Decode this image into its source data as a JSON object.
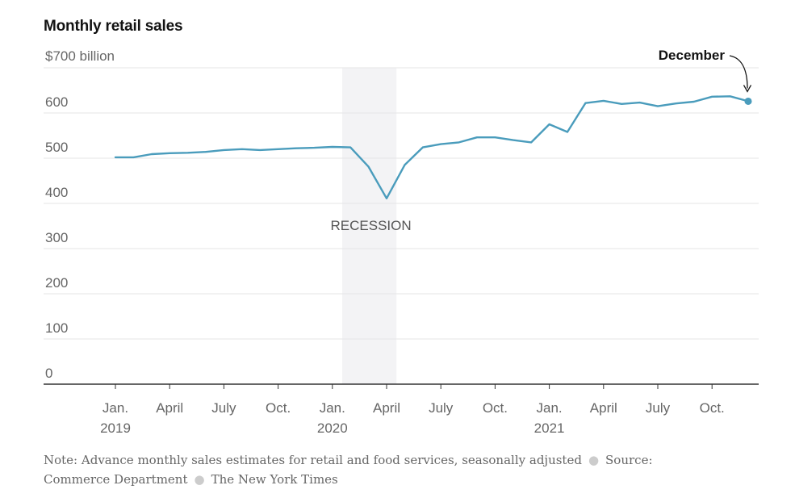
{
  "chart_data": {
    "type": "line",
    "title": "Monthly retail sales",
    "y_unit_label": "$700 billion",
    "ylim": [
      0,
      700
    ],
    "yticks": [
      0,
      100,
      200,
      300,
      400,
      500,
      600
    ],
    "x": [
      "2019-01",
      "2019-02",
      "2019-03",
      "2019-04",
      "2019-05",
      "2019-06",
      "2019-07",
      "2019-08",
      "2019-09",
      "2019-10",
      "2019-11",
      "2019-12",
      "2020-01",
      "2020-02",
      "2020-03",
      "2020-04",
      "2020-05",
      "2020-06",
      "2020-07",
      "2020-08",
      "2020-09",
      "2020-10",
      "2020-11",
      "2020-12",
      "2021-01",
      "2021-02",
      "2021-03",
      "2021-04",
      "2021-05",
      "2021-06",
      "2021-07",
      "2021-08",
      "2021-09",
      "2021-10",
      "2021-11",
      "2021-12"
    ],
    "series": [
      {
        "name": "Monthly retail sales",
        "color": "#4a9cbc",
        "values": [
          502,
          502,
          509,
          511,
          512,
          514,
          518,
          520,
          518,
          520,
          522,
          523,
          525,
          524,
          481,
          411,
          485,
          524,
          531,
          535,
          546,
          546,
          540,
          535,
          575,
          558,
          622,
          627,
          620,
          623,
          615,
          621,
          625,
          636,
          637,
          626
        ]
      }
    ],
    "xtick_labels": [
      {
        "month": 0,
        "line1": "Jan.",
        "line2": "2019"
      },
      {
        "month": 3,
        "line1": "April",
        "line2": ""
      },
      {
        "month": 6,
        "line1": "July",
        "line2": ""
      },
      {
        "month": 9,
        "line1": "Oct.",
        "line2": ""
      },
      {
        "month": 12,
        "line1": "Jan.",
        "line2": "2020"
      },
      {
        "month": 15,
        "line1": "April",
        "line2": ""
      },
      {
        "month": 18,
        "line1": "July",
        "line2": ""
      },
      {
        "month": 21,
        "line1": "Oct.",
        "line2": ""
      },
      {
        "month": 24,
        "line1": "Jan.",
        "line2": "2021"
      },
      {
        "month": 27,
        "line1": "April",
        "line2": ""
      },
      {
        "month": 30,
        "line1": "July",
        "line2": ""
      },
      {
        "month": 33,
        "line1": "Oct.",
        "line2": ""
      }
    ],
    "recession": {
      "label": "RECESSION",
      "start_month": 13,
      "end_month": 16
    },
    "annotation": {
      "label": "December",
      "month": 35
    }
  },
  "footer": {
    "note": "Note: Advance monthly sales estimates for retail and food services, seasonally adjusted",
    "source": "Source: Commerce Department",
    "credit": "The New York Times"
  },
  "colors": {
    "line": "#4a9cbc",
    "recession_shade": "#f3f3f5",
    "grid": "#e6e6e6",
    "axis": "#333333"
  }
}
